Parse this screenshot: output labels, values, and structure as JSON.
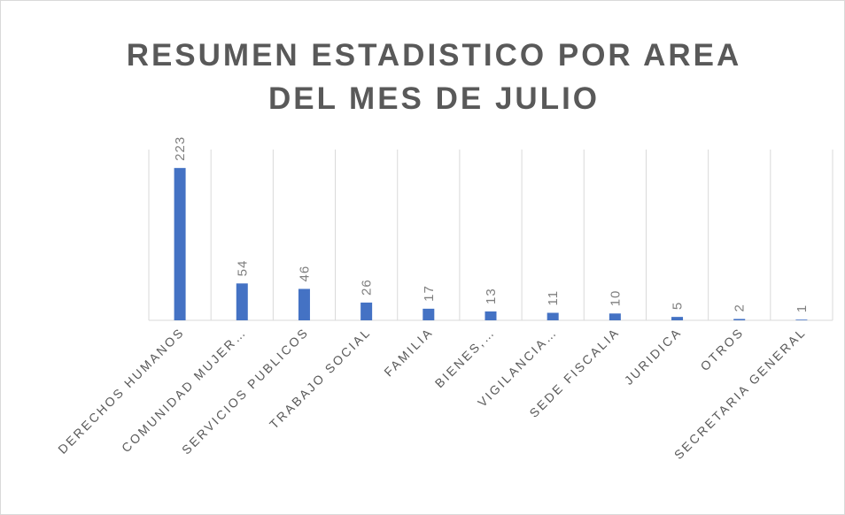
{
  "chart_data": {
    "type": "bar",
    "title": [
      "RESUMEN ESTADISTICO POR AREA",
      "DEL MES DE JULIO"
    ],
    "categories": [
      "DERECHOS HUMANOS",
      "COMUNIDAD MUJER…",
      "SERVICIOS PUBLICOS",
      "TRABAJO SOCIAL",
      "FAMILIA",
      "BIENES,…",
      "VIGILANCIA…",
      "SEDE FISCALIA",
      "JURIDICA",
      "OTROS",
      "SECRETARIA GENERAL"
    ],
    "values": [
      223,
      54,
      46,
      26,
      17,
      13,
      11,
      10,
      5,
      2,
      1
    ],
    "color": "#4472c4",
    "ylim": [
      0,
      250
    ]
  }
}
